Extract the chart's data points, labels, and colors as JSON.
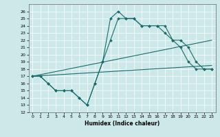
{
  "xlabel": "Humidex (Indice chaleur)",
  "xlim": [
    -0.5,
    23.5
  ],
  "ylim": [
    12,
    27
  ],
  "yticks": [
    12,
    13,
    14,
    15,
    16,
    17,
    18,
    19,
    20,
    21,
    22,
    23,
    24,
    25,
    26
  ],
  "xticks": [
    0,
    1,
    2,
    3,
    4,
    5,
    6,
    7,
    8,
    9,
    10,
    11,
    12,
    13,
    14,
    15,
    16,
    17,
    18,
    19,
    20,
    21,
    22,
    23
  ],
  "bg_color": "#cce8e8",
  "line_color": "#1a6b6b",
  "grid_color": "#b0d8d8",
  "series": {
    "curve1": {
      "x": [
        0,
        1,
        2,
        3,
        4,
        5,
        6,
        7,
        8,
        9,
        10,
        11,
        12,
        13,
        14,
        15,
        16,
        17,
        18,
        19,
        20,
        21,
        22,
        23
      ],
      "y": [
        17,
        17,
        16,
        15,
        15,
        15,
        14,
        13,
        16,
        19,
        25,
        26,
        25,
        25,
        24,
        24,
        24,
        23,
        22,
        21,
        19,
        18,
        18,
        18
      ]
    },
    "curve2": {
      "x": [
        0,
        1,
        2,
        3,
        4,
        5,
        6,
        7,
        8,
        9,
        10,
        11,
        12,
        13,
        14,
        15,
        16,
        17,
        18,
        19,
        20,
        21,
        22,
        23
      ],
      "y": [
        17,
        17,
        16,
        15,
        15,
        15,
        14,
        13,
        16,
        19,
        22,
        25,
        25,
        25,
        24,
        24,
        24,
        24,
        22,
        22,
        21,
        19,
        18,
        18
      ]
    },
    "trend1": {
      "x": [
        0,
        23
      ],
      "y": [
        17.0,
        22.0
      ]
    },
    "trend2": {
      "x": [
        0,
        23
      ],
      "y": [
        17.0,
        18.5
      ]
    }
  },
  "figsize": [
    3.2,
    2.0
  ],
  "dpi": 100
}
